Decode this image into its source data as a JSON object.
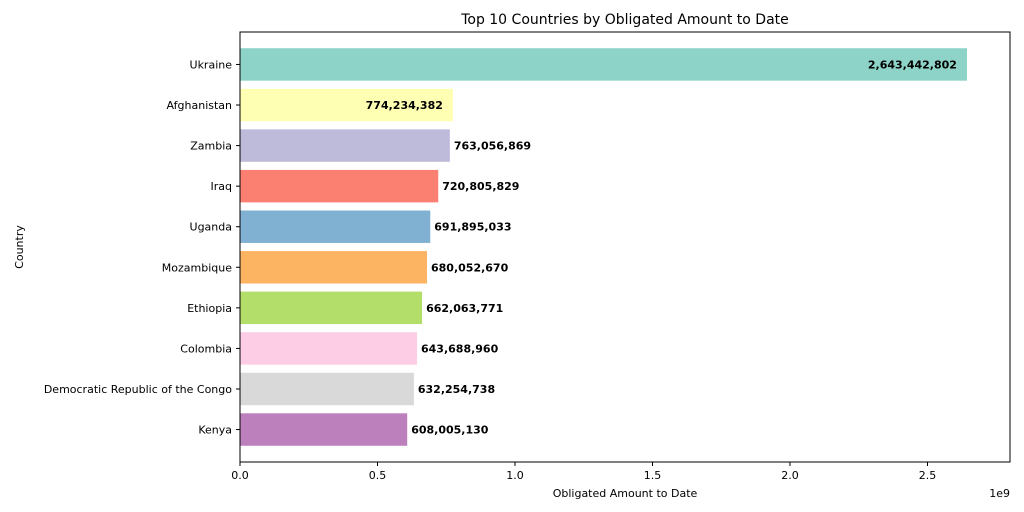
{
  "chart_data": {
    "type": "bar",
    "orientation": "horizontal",
    "title": "Top 10 Countries by Obligated Amount to Date",
    "xlabel": "Obligated Amount to Date",
    "ylabel": "Country",
    "offset_label": "1e9",
    "xlim": [
      0,
      2.8
    ],
    "xticks": [
      0.0,
      0.5,
      1.0,
      1.5,
      2.0,
      2.5
    ],
    "xtick_labels": [
      "0.0",
      "0.5",
      "1.0",
      "1.5",
      "2.0",
      "2.5"
    ],
    "grid": false,
    "categories": [
      "Ukraine",
      "Afghanistan",
      "Zambia",
      "Iraq",
      "Uganda",
      "Mozambique",
      "Ethiopia",
      "Colombia",
      "Democratic Republic of the Congo",
      "Kenya"
    ],
    "values": [
      2643442802,
      774234382,
      763056869,
      720805829,
      691895033,
      680052670,
      662063771,
      643688960,
      632254738,
      608005130
    ],
    "value_labels": [
      "2,643,442,802",
      "774,234,382",
      "763,056,869",
      "720,805,829",
      "691,895,033",
      "680,052,670",
      "662,063,771",
      "643,688,960",
      "632,254,738",
      "608,005,130"
    ],
    "colors": [
      "#8dd3c7",
      "#ffffb3",
      "#bebada",
      "#fb8072",
      "#80b1d3",
      "#fdb462",
      "#b3de69",
      "#fccde5",
      "#d9d9d9",
      "#bc80bd"
    ],
    "label_inside": [
      true,
      true,
      false,
      false,
      false,
      false,
      false,
      false,
      false,
      false
    ]
  }
}
